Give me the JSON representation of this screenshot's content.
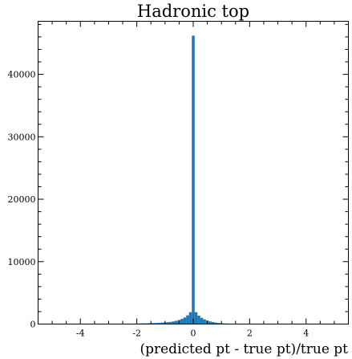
{
  "chart_data": {
    "type": "bar",
    "title": "Hadronic top",
    "xlabel": "(predicted pt - true pt)/true pt",
    "ylabel": "",
    "xlim": [
      -5.5,
      5.5
    ],
    "ylim": [
      0,
      48500
    ],
    "xticks": [
      -4,
      -2,
      0,
      2,
      4
    ],
    "xtick_labels": [
      "-4",
      "-2",
      "0",
      "2",
      "4"
    ],
    "yticks": [
      0,
      10000,
      20000,
      30000,
      40000
    ],
    "ytick_labels": [
      "0",
      "10000",
      "20000",
      "30000",
      "40000"
    ],
    "grid": false,
    "bin_width": 0.1,
    "bins": [
      {
        "x": -3.0,
        "value": 30
      },
      {
        "x": -2.9,
        "value": 30
      },
      {
        "x": -2.8,
        "value": 40
      },
      {
        "x": -2.7,
        "value": 40
      },
      {
        "x": -2.6,
        "value": 40
      },
      {
        "x": -2.5,
        "value": 50
      },
      {
        "x": -2.4,
        "value": 50
      },
      {
        "x": -2.3,
        "value": 60
      },
      {
        "x": -2.2,
        "value": 60
      },
      {
        "x": -2.1,
        "value": 70
      },
      {
        "x": -2.0,
        "value": 80
      },
      {
        "x": -1.9,
        "value": 90
      },
      {
        "x": -1.8,
        "value": 100
      },
      {
        "x": -1.7,
        "value": 110
      },
      {
        "x": -1.6,
        "value": 120
      },
      {
        "x": -1.5,
        "value": 140
      },
      {
        "x": -1.4,
        "value": 160
      },
      {
        "x": -1.3,
        "value": 180
      },
      {
        "x": -1.2,
        "value": 200
      },
      {
        "x": -1.1,
        "value": 230
      },
      {
        "x": -1.0,
        "value": 260
      },
      {
        "x": -0.9,
        "value": 300
      },
      {
        "x": -0.8,
        "value": 350
      },
      {
        "x": -0.7,
        "value": 420
      },
      {
        "x": -0.6,
        "value": 520
      },
      {
        "x": -0.5,
        "value": 650
      },
      {
        "x": -0.4,
        "value": 820
      },
      {
        "x": -0.3,
        "value": 1050
      },
      {
        "x": -0.2,
        "value": 1400
      },
      {
        "x": -0.1,
        "value": 1900
      },
      {
        "x": 0.0,
        "value": 46200
      },
      {
        "x": 0.1,
        "value": 1900
      },
      {
        "x": 0.2,
        "value": 1350
      },
      {
        "x": 0.3,
        "value": 1000
      },
      {
        "x": 0.4,
        "value": 750
      },
      {
        "x": 0.5,
        "value": 560
      },
      {
        "x": 0.6,
        "value": 420
      },
      {
        "x": 0.7,
        "value": 310
      },
      {
        "x": 0.8,
        "value": 230
      },
      {
        "x": 0.9,
        "value": 170
      },
      {
        "x": 1.0,
        "value": 130
      },
      {
        "x": 1.1,
        "value": 100
      },
      {
        "x": 1.2,
        "value": 80
      },
      {
        "x": 1.3,
        "value": 60
      },
      {
        "x": 1.4,
        "value": 50
      },
      {
        "x": 1.5,
        "value": 40
      },
      {
        "x": 1.6,
        "value": 30
      },
      {
        "x": 1.7,
        "value": 25
      },
      {
        "x": 1.8,
        "value": 20
      },
      {
        "x": 1.9,
        "value": 15
      },
      {
        "x": 2.0,
        "value": 12
      }
    ]
  }
}
